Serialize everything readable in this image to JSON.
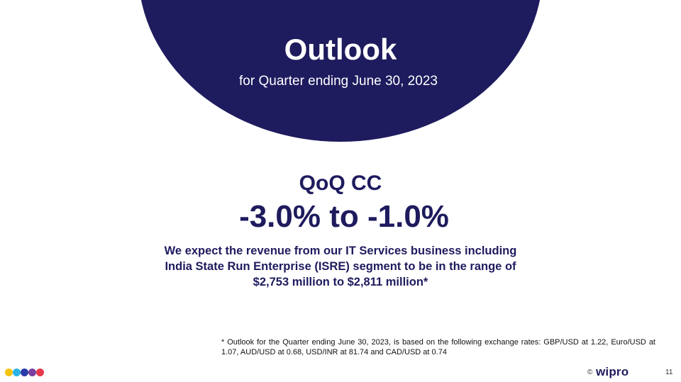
{
  "header": {
    "title": "Outlook",
    "subtitle": "for Quarter ending June 30, 2023"
  },
  "metric": {
    "label": "QoQ CC",
    "value": "-3.0% to -1.0%"
  },
  "description": "We expect the revenue from our IT Services business including India State Run Enterprise (ISRE) segment to be in the range of $2,753 million to $2,811 million*",
  "footnote": "* Outlook for the Quarter ending June 30, 2023, is based on the following exchange rates: GBP/USD at 1.22, Euro/USD at 1.07, AUD/USD at 0.68, USD/INR at 81.74 and CAD/USD at 0.74",
  "footer": {
    "dot_colors": [
      "#f6c40e",
      "#2bb3e6",
      "#2b3aa8",
      "#7b3fa0",
      "#e8394b"
    ],
    "copyright": "©",
    "logo_text": "wipro",
    "page_number": "11"
  },
  "colors": {
    "navy": "#1e1b5e"
  }
}
